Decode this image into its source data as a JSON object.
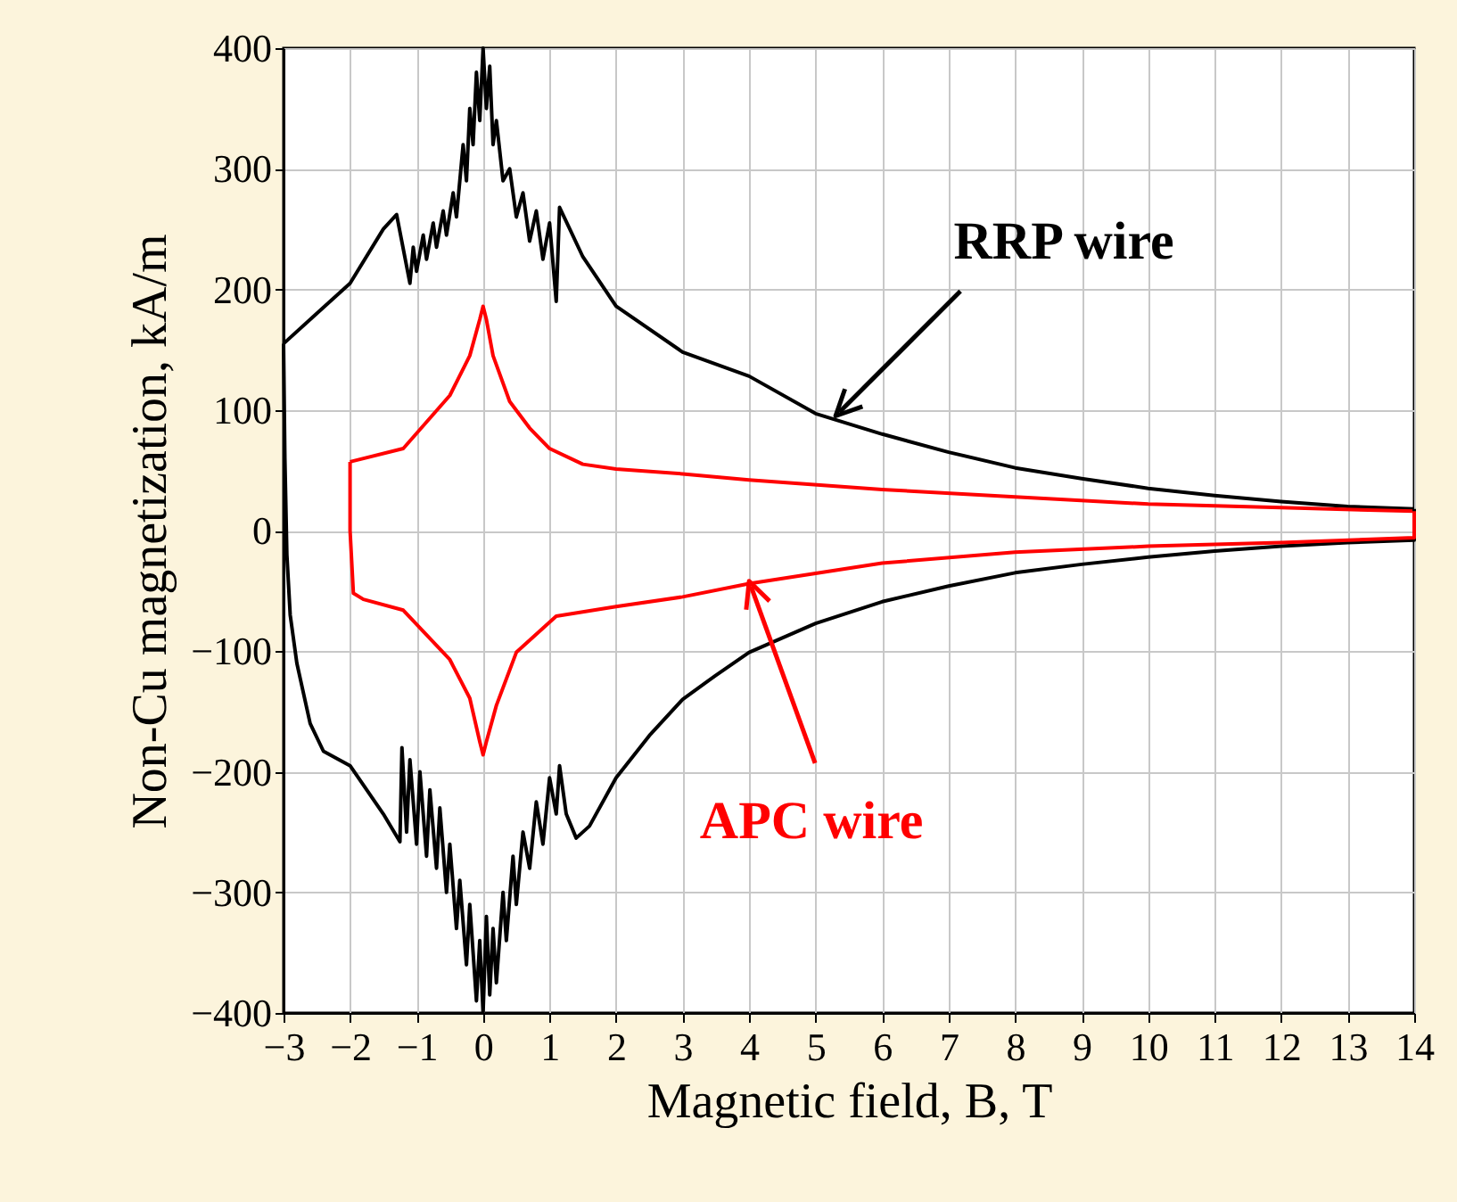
{
  "chart_data": {
    "type": "line",
    "xlabel": "Magnetic field, B, T",
    "ylabel": "Non-Cu magnetization, kA/m",
    "xlim": [
      -3,
      14
    ],
    "xticks": [
      -3,
      -2,
      -1,
      0,
      1,
      2,
      3,
      4,
      5,
      6,
      7,
      8,
      9,
      10,
      11,
      12,
      13,
      14
    ],
    "ylim": [
      -400,
      400
    ],
    "yticks": [
      -400,
      -300,
      -200,
      -100,
      0,
      100,
      200,
      300,
      400
    ],
    "grid": true,
    "line_style": "solid",
    "series": [
      {
        "color": "#000000",
        "x": [
          14,
          13,
          12,
          11,
          10,
          9,
          8,
          7,
          6,
          5,
          4,
          3,
          2,
          1.5,
          1.15,
          1.1,
          1,
          0.9,
          0.8,
          0.7,
          0.6,
          0.5,
          0.4,
          0.3,
          0.2,
          0.15,
          0.1,
          0.05,
          0,
          -0.05,
          -0.1,
          -0.15,
          -0.2,
          -0.25,
          -0.3,
          -0.4,
          -0.45,
          -0.55,
          -0.6,
          -0.7,
          -0.75,
          -0.85,
          -0.9,
          -1,
          -1.05,
          -1.1,
          -1.3,
          -1.5,
          -2,
          -2.5,
          -3
        ],
        "values": [
          18,
          20,
          24,
          29,
          35,
          43,
          52,
          65,
          80,
          97,
          128,
          148,
          186,
          227,
          268,
          190,
          255,
          225,
          265,
          240,
          280,
          260,
          300,
          290,
          340,
          320,
          385,
          350,
          400,
          340,
          380,
          320,
          350,
          290,
          320,
          260,
          280,
          245,
          265,
          235,
          255,
          225,
          245,
          215,
          235,
          205,
          262,
          250,
          205,
          180,
          155
        ]
      },
      {
        "color": "#ff0000",
        "x": [
          14,
          12,
          10,
          8,
          6,
          4,
          3,
          2,
          1.5,
          1,
          0.7,
          0.4,
          0.15,
          0.05,
          0,
          -0.05,
          -0.2,
          -0.5,
          -1.2,
          -2
        ],
        "values": [
          16,
          19,
          22,
          28,
          34,
          42,
          47,
          51,
          55,
          68,
          85,
          107,
          145,
          175,
          186,
          175,
          145,
          112,
          68,
          57
        ]
      },
      {
        "color": "#000000",
        "x": [
          -3,
          -2.98,
          -2.95,
          -2.9,
          -2.8,
          -2.6,
          -2.4,
          -2,
          -1.5,
          -1.25,
          -1.22,
          -1.15,
          -1.1,
          -1,
          -0.95,
          -0.85,
          -0.8,
          -0.7,
          -0.65,
          -0.55,
          -0.5,
          -0.4,
          -0.35,
          -0.25,
          -0.2,
          -0.1,
          -0.05,
          0,
          0.05,
          0.1,
          0.15,
          0.2,
          0.3,
          0.35,
          0.45,
          0.5,
          0.6,
          0.7,
          0.8,
          0.9,
          1,
          1.1,
          1.15,
          1.25,
          1.4,
          1.6,
          2,
          2.5,
          3,
          3.5,
          4,
          5,
          6,
          7,
          8,
          9,
          10,
          11,
          12,
          13,
          14,
          14
        ],
        "values": [
          155,
          60,
          -20,
          -70,
          -110,
          -160,
          -183,
          -195,
          -235,
          -258,
          -180,
          -250,
          -190,
          -260,
          -200,
          -270,
          -215,
          -280,
          -230,
          -300,
          -260,
          -330,
          -290,
          -360,
          -310,
          -390,
          -340,
          -400,
          -320,
          -385,
          -330,
          -375,
          -300,
          -340,
          -270,
          -310,
          -250,
          -280,
          -225,
          -260,
          -205,
          -235,
          -195,
          -235,
          -255,
          -245,
          -205,
          -170,
          -140,
          -120,
          -101,
          -77,
          -59,
          -46,
          -35,
          -28,
          -22,
          -17,
          -13,
          -10,
          -8,
          18
        ]
      },
      {
        "color": "#ff0000",
        "x": [
          -2,
          -2,
          -1.95,
          -1.8,
          -1.2,
          -0.5,
          -0.2,
          -0.05,
          0,
          0.05,
          0.2,
          0.5,
          1.1,
          2,
          3,
          4,
          6,
          8,
          10,
          12,
          14,
          14
        ],
        "values": [
          57,
          0,
          -52,
          -57,
          -66,
          -107,
          -139,
          -175,
          -186,
          -175,
          -145,
          -101,
          -71,
          -63,
          -55,
          -44,
          -27,
          -18,
          -13,
          -10,
          -6,
          16
        ]
      }
    ],
    "annotations": [
      {
        "text": "RRP wire",
        "x": 5.3,
        "y": 95
      },
      {
        "text": "APC wire",
        "x": 4,
        "y": -42
      }
    ]
  }
}
